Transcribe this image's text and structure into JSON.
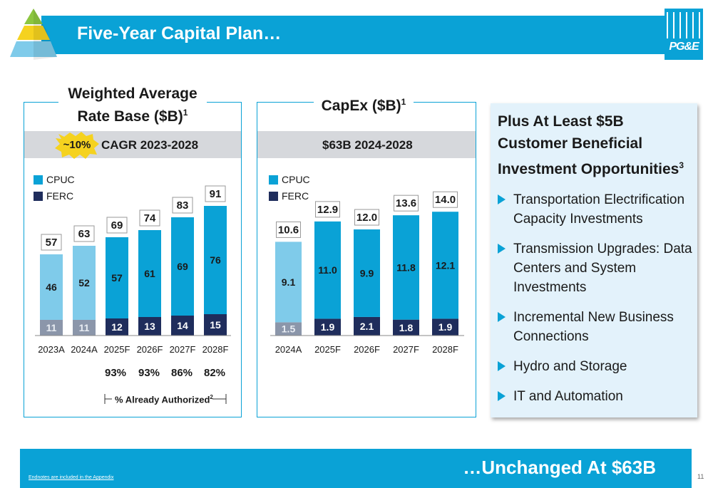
{
  "header": {
    "title": "Five-Year Capital Plan…",
    "logo": "PG&E"
  },
  "colors": {
    "brand_blue": "#0aa2d6",
    "cpuc": "#0aa2d6",
    "ferc": "#1f2d5c",
    "cpuc_actual": "#7fcbea",
    "ferc_actual": "#8b96aa"
  },
  "rate_base": {
    "title_line1": "Weighted Average",
    "title_line2": "Rate Base ($B)",
    "title_sup": "1",
    "cagr_badge": "~10%",
    "cagr_text": "CAGR 2023-2028",
    "legend": [
      "CPUC",
      "FERC"
    ],
    "pct_authorized": [
      "93%",
      "93%",
      "86%",
      "82%"
    ],
    "authorized_label": "% Already Authorized",
    "authorized_sup": "2"
  },
  "capex": {
    "title": "CapEx ($B)",
    "title_sup": "1",
    "band_text": "$63B 2024-2028",
    "legend": [
      "CPUC",
      "FERC"
    ]
  },
  "info": {
    "title_line1": "Plus At Least $5B",
    "title_line2": "Customer Beneficial",
    "title_line3": "Investment Opportunities",
    "title_sup": "3",
    "bullets": [
      "Transportation Electrification Capacity Investments",
      "Transmission Upgrades: Data Centers and System Investments",
      "Incremental New Business Connections",
      "Hydro and Storage",
      "IT and Automation"
    ]
  },
  "footer": {
    "text": "…Unchanged At $63B",
    "endnotes": "Endnotes are included in the Appendix",
    "page": "11"
  },
  "chart_data": [
    {
      "type": "bar",
      "stacked": true,
      "title": "Weighted Average Rate Base ($B)",
      "categories": [
        "2023A",
        "2024A",
        "2025F",
        "2026F",
        "2027F",
        "2028F"
      ],
      "series": [
        {
          "name": "FERC",
          "values": [
            11,
            11,
            12,
            13,
            14,
            15
          ]
        },
        {
          "name": "CPUC",
          "values": [
            46,
            52,
            57,
            61,
            69,
            76
          ]
        }
      ],
      "totals": [
        57,
        63,
        69,
        74,
        83,
        91
      ],
      "ylim": [
        0,
        95
      ]
    },
    {
      "type": "bar",
      "stacked": true,
      "title": "CapEx ($B)",
      "categories": [
        "2024A",
        "2025F",
        "2026F",
        "2027F",
        "2028F"
      ],
      "series": [
        {
          "name": "FERC",
          "values": [
            "1.5",
            "1.9",
            "2.1",
            "1.8",
            "1.9"
          ]
        },
        {
          "name": "CPUC",
          "values": [
            "9.1",
            "11.0",
            "9.9",
            "11.8",
            "12.1"
          ]
        }
      ],
      "totals": [
        "10.6",
        "12.9",
        "12.0",
        "13.6",
        "14.0"
      ],
      "ylim": [
        0,
        14.5
      ]
    }
  ]
}
